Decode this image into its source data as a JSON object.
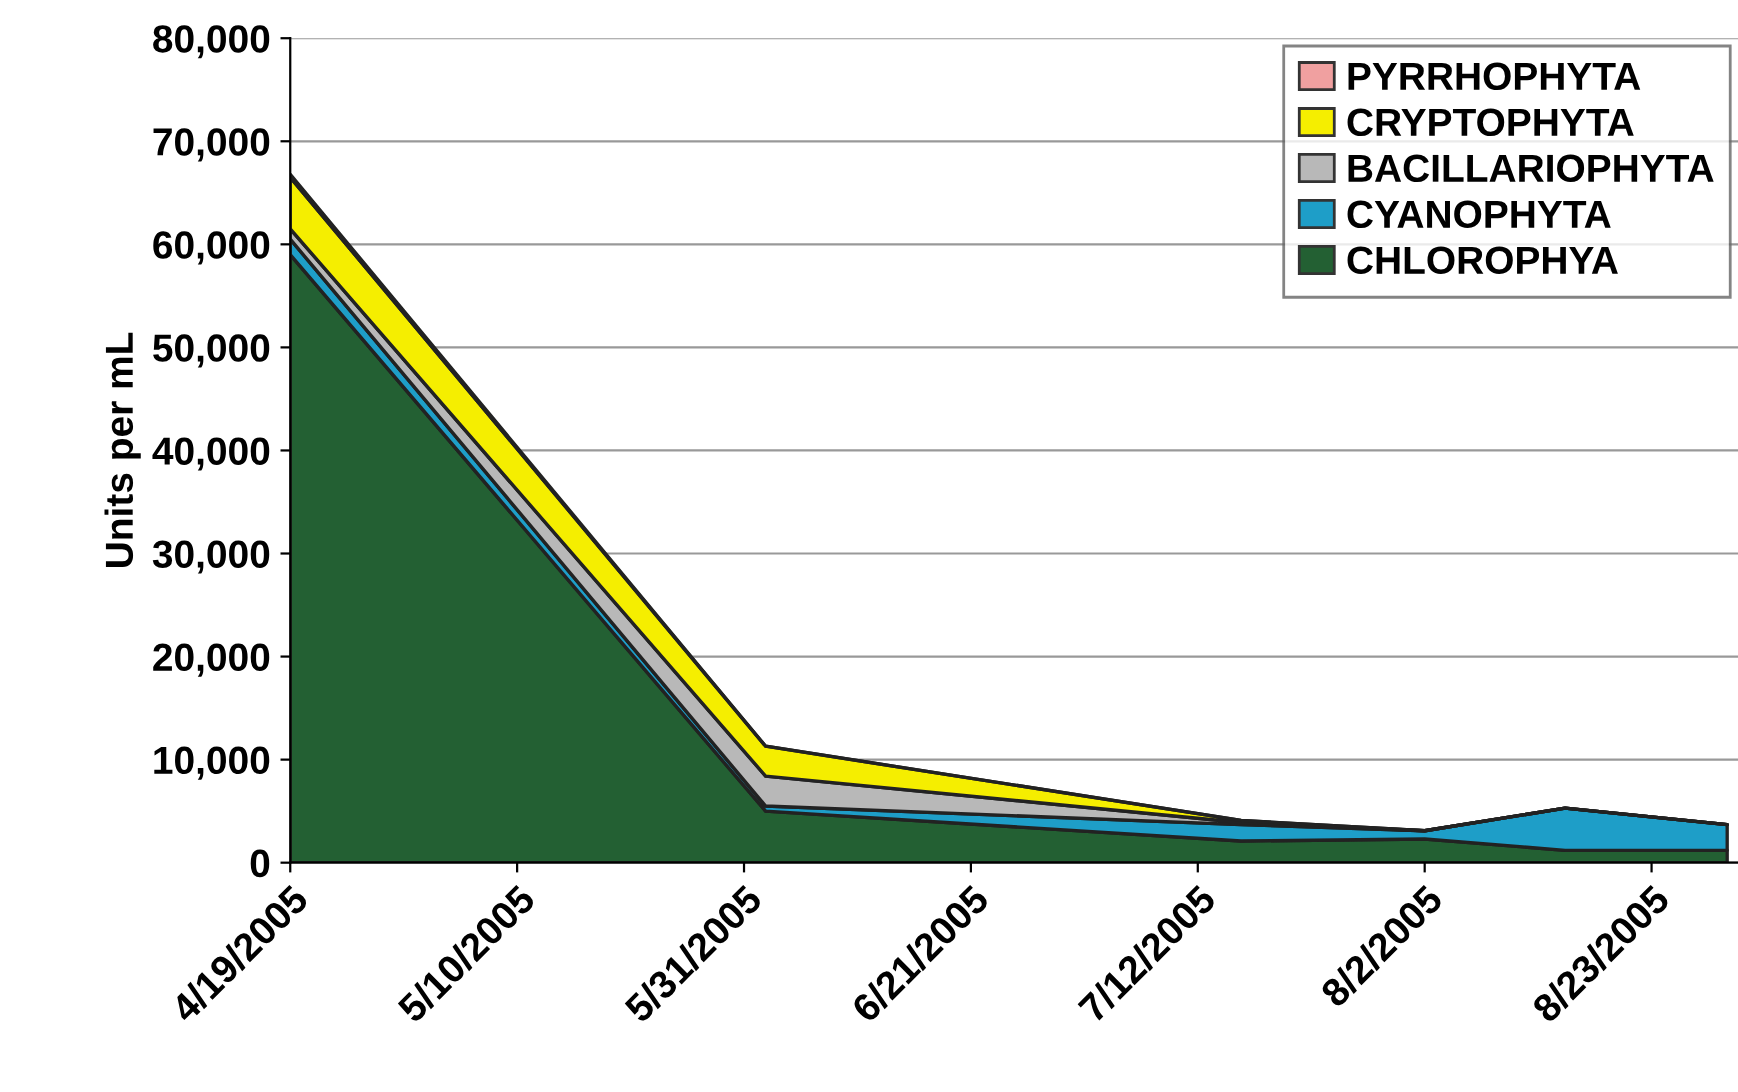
{
  "chart_data": {
    "type": "area",
    "stacked": true,
    "ylabel": "Units per mL",
    "x": [
      "2005-04-19",
      "2005-06-02",
      "2005-07-16",
      "2005-08-02",
      "2005-08-15",
      "2005-08-30"
    ],
    "series": [
      {
        "name": "CHLOROPHYA",
        "color": "#236033",
        "values": [
          59000,
          5000,
          2100,
          2300,
          1200,
          1200
        ]
      },
      {
        "name": "CYANOPHYTA",
        "color": "#1e9ec8",
        "values": [
          1500,
          500,
          1600,
          800,
          4100,
          2500
        ]
      },
      {
        "name": "BACILLARIOPHYTA",
        "color": "#b8b8b8",
        "values": [
          1000,
          2900,
          200,
          0,
          0,
          0
        ]
      },
      {
        "name": "CRYPTOPHYTA",
        "color": "#f5ee00",
        "values": [
          5000,
          2900,
          200,
          0,
          0,
          0
        ]
      },
      {
        "name": "PYRRHOPHYTA",
        "color": "#f0a0a0",
        "values": [
          300,
          0,
          0,
          0,
          0,
          0
        ]
      }
    ],
    "ylim": [
      0,
      80000
    ],
    "yticks": [
      {
        "value": 0,
        "label": "0"
      },
      {
        "value": 10000,
        "label": "10,000"
      },
      {
        "value": 20000,
        "label": "20,000"
      },
      {
        "value": 30000,
        "label": "30,000"
      },
      {
        "value": 40000,
        "label": "40,000"
      },
      {
        "value": 50000,
        "label": "50,000"
      },
      {
        "value": 60000,
        "label": "60,000"
      },
      {
        "value": 70000,
        "label": "70,000"
      },
      {
        "value": 80000,
        "label": "80,000"
      }
    ],
    "xlim": [
      "2005-04-19",
      "2005-08-31"
    ],
    "xticks": [
      {
        "value": "2005-04-19",
        "label": "4/19/2005"
      },
      {
        "value": "2005-05-10",
        "label": "5/10/2005"
      },
      {
        "value": "2005-05-31",
        "label": "5/31/2005"
      },
      {
        "value": "2005-06-21",
        "label": "6/21/2005"
      },
      {
        "value": "2005-07-12",
        "label": "7/12/2005"
      },
      {
        "value": "2005-08-02",
        "label": "8/2/2005"
      },
      {
        "value": "2005-08-23",
        "label": "8/23/2005"
      }
    ],
    "grid": "y",
    "legend": "top right"
  }
}
